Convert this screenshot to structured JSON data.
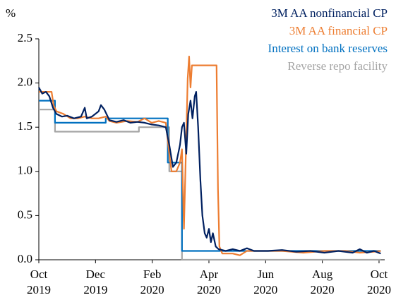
{
  "chart_data": {
    "type": "line",
    "ylabel": "%",
    "xlim": [
      0,
      12.2
    ],
    "xticks": [
      {
        "value": 0,
        "label": "Oct 2019"
      },
      {
        "value": 2,
        "label": "Dec 2019"
      },
      {
        "value": 4,
        "label": "Feb 2020"
      },
      {
        "value": 6,
        "label": "Apr 2020"
      },
      {
        "value": 8,
        "label": "Jun 2020"
      },
      {
        "value": 10,
        "label": "Aug 2020"
      },
      {
        "value": 12,
        "label": "Oct 2020"
      }
    ],
    "ylim": [
      0,
      2.5
    ],
    "yticks": [
      {
        "value": 0,
        "label": "0.0"
      },
      0.5,
      {
        "value": 1,
        "label": "1.0"
      },
      1.5,
      {
        "value": 2,
        "label": "2.0"
      },
      2.5
    ],
    "grid": false,
    "legend": "upper right",
    "series": [
      {
        "name": "3M AA nonfinancial CP",
        "color": "#002060",
        "x": [
          0,
          0.12,
          0.25,
          0.37,
          0.5,
          0.62,
          0.82,
          1.0,
          1.24,
          1.49,
          1.62,
          1.69,
          1.87,
          2.11,
          2.19,
          2.31,
          2.49,
          2.74,
          2.99,
          3.23,
          3.48,
          3.73,
          3.98,
          4.23,
          4.48,
          4.6,
          4.73,
          4.85,
          4.98,
          5.05,
          5.12,
          5.2,
          5.27,
          5.35,
          5.42,
          5.5,
          5.55,
          5.62,
          5.7,
          5.77,
          5.85,
          5.92,
          6.0,
          6.07,
          6.14,
          6.24,
          6.34,
          6.59,
          6.84,
          7.09,
          7.34,
          7.59,
          8.08,
          8.58,
          9.08,
          9.58,
          10.07,
          10.57,
          11.07,
          11.32,
          11.57,
          11.82,
          12.06
        ],
        "values": [
          1.95,
          1.88,
          1.9,
          1.85,
          1.72,
          1.65,
          1.62,
          1.63,
          1.6,
          1.62,
          1.72,
          1.6,
          1.62,
          1.68,
          1.75,
          1.7,
          1.58,
          1.56,
          1.58,
          1.55,
          1.56,
          1.55,
          1.53,
          1.52,
          1.5,
          1.3,
          1.05,
          1.1,
          1.3,
          1.5,
          1.55,
          1.2,
          1.65,
          1.8,
          1.6,
          1.85,
          1.9,
          1.5,
          0.9,
          0.5,
          0.3,
          0.25,
          0.35,
          0.2,
          0.3,
          0.15,
          0.12,
          0.1,
          0.12,
          0.1,
          0.13,
          0.1,
          0.1,
          0.11,
          0.09,
          0.1,
          0.08,
          0.1,
          0.08,
          0.12,
          0.08,
          0.1,
          0.07
        ]
      },
      {
        "name": "3M AA financial CP",
        "color": "#ed7d31",
        "x": [
          0,
          0.25,
          0.45,
          0.52,
          0.62,
          0.87,
          1.12,
          1.37,
          1.62,
          1.87,
          2.11,
          2.36,
          2.49,
          2.74,
          3.11,
          3.48,
          3.73,
          3.98,
          4.23,
          4.48,
          4.6,
          4.68,
          4.85,
          4.98,
          5.05,
          5.12,
          5.2,
          5.25,
          5.3,
          5.35,
          5.4,
          5.85,
          6.27,
          6.32,
          6.37,
          6.47,
          6.84,
          7.09,
          7.34,
          7.84,
          8.58,
          9.33,
          10.07,
          10.82,
          11.32,
          11.82,
          12.06
        ],
        "values": [
          1.9,
          1.9,
          1.9,
          1.75,
          1.68,
          1.65,
          1.6,
          1.6,
          1.62,
          1.6,
          1.6,
          1.62,
          1.57,
          1.55,
          1.57,
          1.56,
          1.6,
          1.55,
          1.57,
          1.55,
          1.2,
          1.0,
          1.0,
          1.1,
          1.25,
          0.35,
          1.4,
          2.05,
          2.3,
          1.95,
          2.2,
          2.2,
          2.2,
          0.8,
          0.15,
          0.07,
          0.07,
          0.05,
          0.1,
          0.1,
          0.1,
          0.08,
          0.1,
          0.1,
          0.08,
          0.09,
          0.1
        ]
      },
      {
        "name": "Interest on bank reserves",
        "color": "#0070c0",
        "x": [
          0,
          0.57,
          0.57,
          2.36,
          2.36,
          4.55,
          4.55,
          5.05,
          5.05,
          12.06
        ],
        "values": [
          1.8,
          1.8,
          1.55,
          1.55,
          1.6,
          1.6,
          1.1,
          1.1,
          0.1,
          0.1
        ]
      },
      {
        "name": "Reverse repo facility",
        "color": "#a5a5a5",
        "x": [
          0,
          0.57,
          0.57,
          3.53,
          3.53,
          4.6,
          4.6,
          5.05,
          5.05,
          12.06
        ],
        "values": [
          1.7,
          1.7,
          1.45,
          1.45,
          1.5,
          1.5,
          1.0,
          1.0,
          0,
          0
        ]
      }
    ]
  }
}
